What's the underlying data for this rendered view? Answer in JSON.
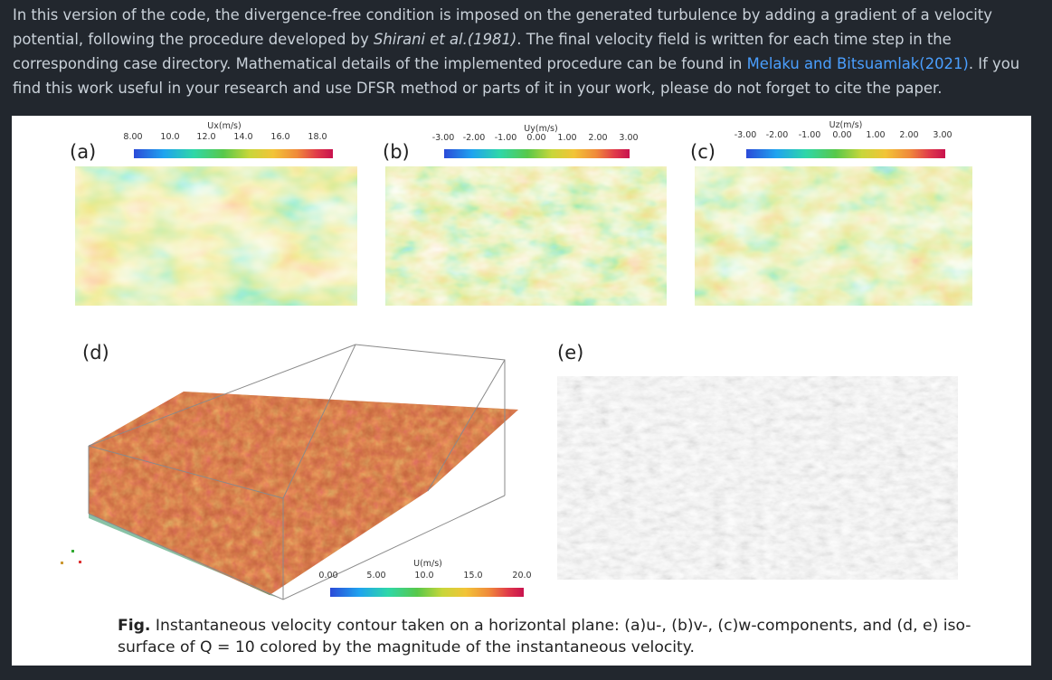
{
  "paragraph": {
    "part1": "In this version of the code, the divergence-free condition is imposed on the generated turbulence by adding a gradient of a velocity potential, following the procedure developed by ",
    "citation1": "Shirani et al.(1981)",
    "part2": ". The final velocity field is written for each time step in the corresponding case directory. Mathematical details of the implemented procedure can be found in ",
    "link": "Melaku and Bitsuamlak(2021)",
    "part3": ". If you find this work useful in your research and use DFSR method or parts of it in your work, please do not forget to cite the paper."
  },
  "panels": {
    "a": {
      "label": "(a)",
      "colorbar_title": "Ux(m/s)",
      "ticks": [
        "8.00",
        "10.0",
        "12.0",
        "14.0",
        "16.0",
        "18.0"
      ]
    },
    "b": {
      "label": "(b)",
      "colorbar_title": "Uy(m/s)",
      "ticks": [
        "-3.00",
        "-2.00",
        "-1.00",
        "0.00",
        "1.00",
        "2.00",
        "3.00"
      ]
    },
    "c": {
      "label": "(c)",
      "colorbar_title": "Uz(m/s)",
      "ticks": [
        "-3.00",
        "-2.00",
        "-1.00",
        "0.00",
        "1.00",
        "2.00",
        "3.00"
      ]
    },
    "d": {
      "label": "(d)",
      "colorbar_title": "U(m/s)",
      "ticks": [
        "0.00",
        "5.00",
        "10.0",
        "15.0",
        "20.0"
      ]
    },
    "e": {
      "label": "(e)"
    }
  },
  "caption": {
    "prefix": "Fig.",
    "text": " Instantaneous velocity contour taken on a horizontal plane: (a)u-, (b)v-,  (c)w-components, and (d, e) iso-surface of Q = 10 colored by the magnitude of the instantaneous velocity."
  },
  "colors": {
    "background": "#22272e",
    "text": "#c9d1d9",
    "link": "#4a9fff"
  }
}
